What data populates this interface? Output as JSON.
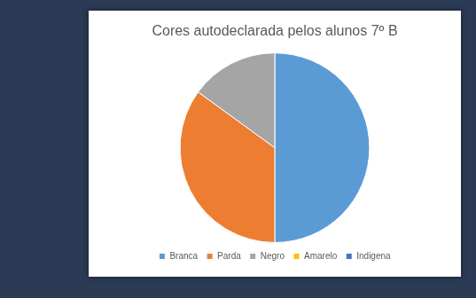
{
  "chart_data": {
    "type": "pie",
    "title": "Cores autodeclarada pelos alunos 7º B",
    "categories": [
      "Branca",
      "Parda",
      "Negro",
      "Amarelo",
      "Indigena"
    ],
    "values": [
      50,
      35,
      15,
      0,
      0
    ],
    "colors": [
      "#5b9bd5",
      "#ed7d31",
      "#a5a5a5",
      "#ffc000",
      "#4472c4"
    ],
    "legend": "bottom"
  }
}
